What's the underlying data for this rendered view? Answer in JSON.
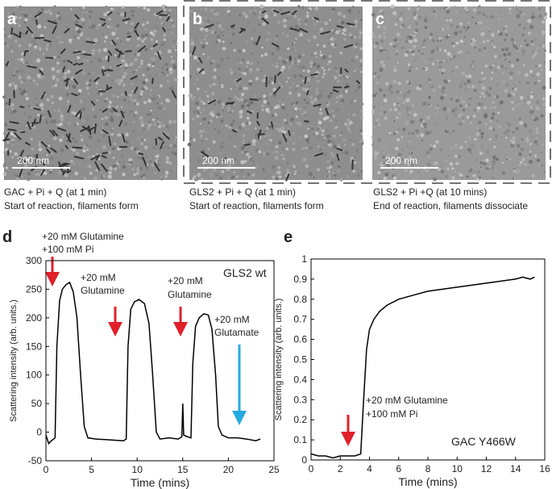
{
  "panels": [
    {
      "label": "a",
      "scale_bar": "200 nm",
      "caption": [
        "GAC + Pi + Q (at 1 min)",
        "Start of reaction, filaments form"
      ]
    },
    {
      "label": "b",
      "scale_bar": "200 nm",
      "caption": [
        "GLS2 + Pi + Q (at 1 min)",
        "Start of reaction, filaments form"
      ]
    },
    {
      "label": "c",
      "scale_bar": "200 nm",
      "caption": [
        "GLS2 + Pi +Q (at 10 mins)",
        "End of reaction, filaments dissociate"
      ]
    }
  ],
  "chart_data": [
    {
      "type": "line",
      "label": "d",
      "xlabel": "Time (mins)",
      "ylabel": "Scattering intensity (arb. units.)",
      "annotations": [
        "+20 mM Glutamine",
        "+100 mM Pi",
        "+20 mM",
        "Glutamine",
        "+20 mM",
        "Glutamine",
        "+20 mM",
        "Glutamate",
        "GLS2 wt"
      ],
      "xlim": [
        0,
        25
      ],
      "xticks": [
        0,
        5,
        10,
        15,
        20,
        25
      ],
      "ylim": [
        -50,
        300
      ],
      "yticks": [
        -50,
        0,
        50,
        100,
        150,
        200,
        250,
        300
      ],
      "x": [
        0,
        0.3,
        0.6,
        1.0,
        1.2,
        1.5,
        1.8,
        2.2,
        2.6,
        3.0,
        3.4,
        3.8,
        4.2,
        4.6,
        5.5,
        6.5,
        7.5,
        8.5,
        8.8,
        9.0,
        9.3,
        9.7,
        10.2,
        10.8,
        11.3,
        11.7,
        12.1,
        12.5,
        13.5,
        14.5,
        14.9,
        15.0,
        15.1,
        15.5,
        15.9,
        16.1,
        16.4,
        16.8,
        17.3,
        17.8,
        18.2,
        18.6,
        18.9,
        19.3,
        20,
        21,
        22,
        23,
        23.5
      ],
      "series": [
        {
          "color": "#000000",
          "values": [
            -5,
            -20,
            -15,
            -10,
            150,
            230,
            250,
            258,
            262,
            245,
            200,
            100,
            10,
            -10,
            -12,
            -13,
            -14,
            -15,
            -12,
            150,
            215,
            228,
            232,
            225,
            190,
            100,
            0,
            -12,
            -10,
            -12,
            -8,
            50,
            -5,
            -8,
            -10,
            120,
            185,
            200,
            207,
            205,
            180,
            100,
            10,
            -5,
            -10,
            -10,
            -12,
            -15,
            -12
          ]
        }
      ]
    },
    {
      "type": "line",
      "label": "e",
      "xlabel": "Time (mins)",
      "ylabel": "Scattering intensity (arb. units.)",
      "annotations": [
        "+20 mM Glutamine",
        "+100 mM Pi",
        "GAC Y466W"
      ],
      "xlim": [
        0,
        16
      ],
      "xticks": [
        0,
        2,
        4,
        6,
        8,
        10,
        12,
        14,
        16
      ],
      "ylim": [
        0,
        1
      ],
      "yticks": [
        0,
        0.1,
        0.2,
        0.3,
        0.4,
        0.5,
        0.6,
        0.7,
        0.8,
        0.9,
        1
      ],
      "x": [
        0,
        0.5,
        1,
        1.5,
        2,
        2.5,
        3,
        3.4,
        3.6,
        3.8,
        4.0,
        4.3,
        4.7,
        5.2,
        6,
        7,
        8,
        9,
        10,
        11,
        12,
        13,
        14,
        14.5,
        15,
        15.3
      ],
      "series": [
        {
          "color": "#000000",
          "values": [
            0.03,
            0.02,
            0.02,
            0.01,
            0.02,
            0.02,
            0.02,
            0.03,
            0.3,
            0.55,
            0.65,
            0.7,
            0.74,
            0.77,
            0.8,
            0.82,
            0.84,
            0.85,
            0.86,
            0.87,
            0.88,
            0.89,
            0.9,
            0.91,
            0.9,
            0.91
          ]
        }
      ]
    }
  ]
}
